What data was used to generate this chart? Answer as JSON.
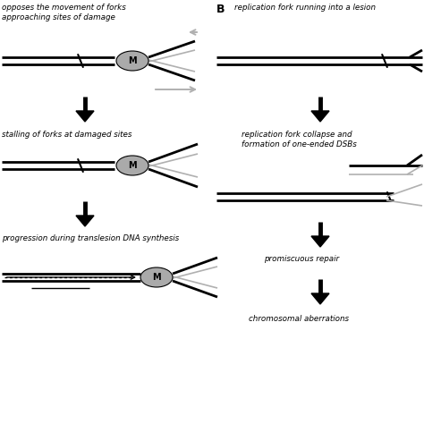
{
  "fig_width": 4.74,
  "fig_height": 4.74,
  "dpi": 100,
  "bg": "#ffffff",
  "black": "#000000",
  "gray_ell": "#aaaaaa",
  "lgray": "#b0b0b0",
  "panel_A": {
    "text1a": "opposes the movement of forks",
    "text1b": "approaching sites of damage",
    "text2": "stalling of forks at damaged sites",
    "text3": "progression during translesion DNA synthesis"
  },
  "panel_B": {
    "labelB": "B",
    "text1": "replication fork running into a lesion",
    "text2a": "replication fork collapse and",
    "text2b": "formation of one-ended DSBs",
    "text3": "promiscuous repair",
    "text4": "chromosomal aberrations"
  }
}
